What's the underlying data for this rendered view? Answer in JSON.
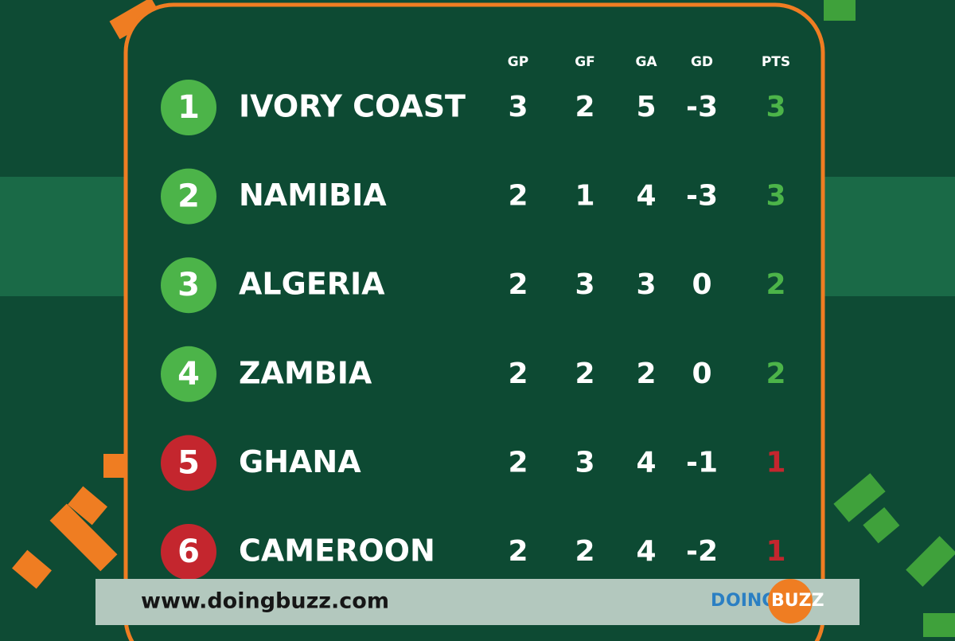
{
  "table": {
    "headers": [
      "GP",
      "GF",
      "GA",
      "GD",
      "PTS"
    ],
    "rows": [
      {
        "rank": "1",
        "team": "IVORY COAST",
        "stats": [
          "3",
          "2",
          "5",
          "-3",
          "3"
        ],
        "color": "#4cb449"
      },
      {
        "rank": "2",
        "team": "NAMIBIA",
        "stats": [
          "2",
          "1",
          "4",
          "-3",
          "3"
        ],
        "color": "#4cb449"
      },
      {
        "rank": "3",
        "team": "ALGERIA",
        "stats": [
          "2",
          "3",
          "3",
          "0",
          "2"
        ],
        "color": "#4cb449"
      },
      {
        "rank": "4",
        "team": "ZAMBIA",
        "stats": [
          "2",
          "2",
          "2",
          "0",
          "2"
        ],
        "color": "#4cb449"
      },
      {
        "rank": "5",
        "team": "GHANA",
        "stats": [
          "2",
          "3",
          "4",
          "-1",
          "1"
        ],
        "color": "#c4262e"
      },
      {
        "rank": "6",
        "team": "CAMEROON",
        "stats": [
          "2",
          "2",
          "4",
          "-2",
          "1"
        ],
        "color": "#c4262e"
      }
    ]
  },
  "footer": {
    "url": "www.doingbuzz.com",
    "logo": [
      "D",
      "OING",
      "BUZZ"
    ]
  }
}
